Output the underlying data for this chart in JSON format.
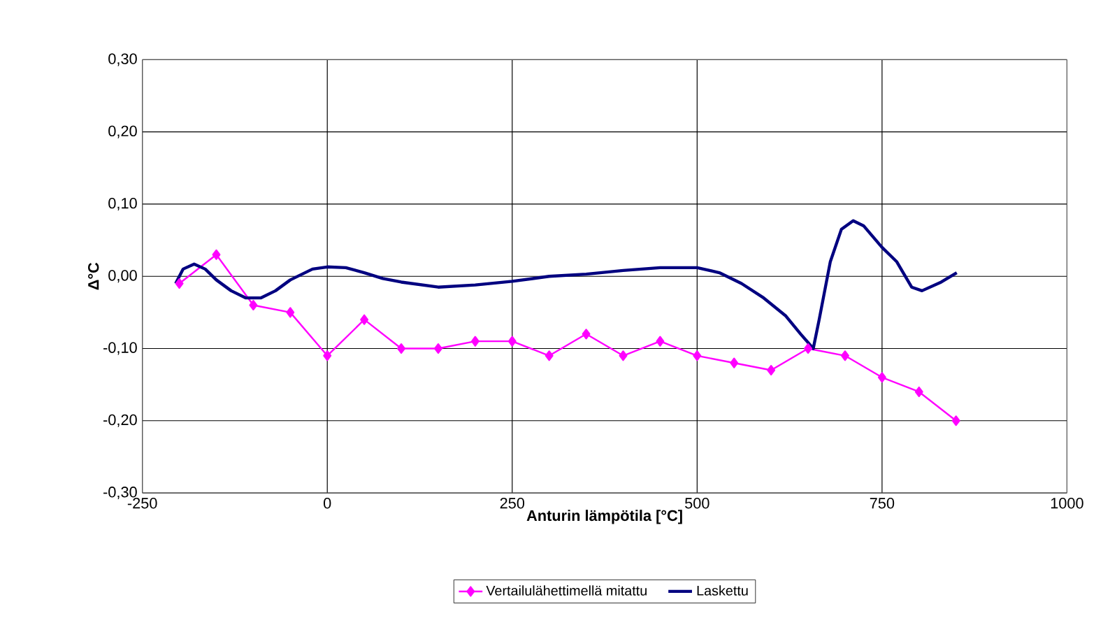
{
  "chart_data": {
    "type": "line",
    "xlabel": "Anturin lämpötila [°C]",
    "ylabel": "Δ°C",
    "xlim": [
      -250,
      1000
    ],
    "xticks": [
      -250,
      0,
      250,
      500,
      750,
      1000
    ],
    "ylim": [
      -0.3,
      0.3
    ],
    "yticks": [
      {
        "value": -0.3,
        "label": "-0,30"
      },
      {
        "value": -0.2,
        "label": "-0,20"
      },
      {
        "value": -0.1,
        "label": "-0,10"
      },
      {
        "value": 0,
        "label": "0,00"
      },
      {
        "value": 0.1,
        "label": "0,10"
      },
      {
        "value": 0.2,
        "label": "0,20"
      },
      {
        "value": 0.3,
        "label": "0,30"
      }
    ],
    "grid": true,
    "legend": "bottom",
    "series": [
      {
        "name": "Vertailulähettimellä mitattu",
        "color": "#ff00ff",
        "marker": "diamond",
        "x": [
          -200,
          -150,
          -100,
          -50,
          0,
          50,
          100,
          150,
          200,
          250,
          300,
          350,
          400,
          450,
          500,
          550,
          600,
          650,
          700,
          750,
          800,
          850
        ],
        "values": [
          -0.01,
          0.03,
          -0.04,
          -0.05,
          -0.11,
          -0.06,
          -0.1,
          -0.1,
          -0.09,
          -0.09,
          -0.11,
          -0.08,
          -0.11,
          -0.09,
          -0.11,
          -0.12,
          -0.13,
          -0.1,
          -0.11,
          -0.14,
          -0.16,
          -0.2
        ]
      },
      {
        "name": "Laskettu",
        "color": "#000080",
        "marker": "none",
        "x": [
          -205,
          -195,
          -180,
          -165,
          -150,
          -130,
          -110,
          -90,
          -70,
          -50,
          -20,
          0,
          25,
          50,
          75,
          100,
          150,
          200,
          250,
          300,
          350,
          400,
          450,
          500,
          530,
          560,
          590,
          620,
          640,
          657,
          665,
          680,
          695,
          711,
          725,
          750,
          770,
          790,
          804,
          830,
          851
        ],
        "values": [
          -0.01,
          0.01,
          0.017,
          0.01,
          -0.005,
          -0.02,
          -0.03,
          -0.03,
          -0.02,
          -0.005,
          0.01,
          0.013,
          0.012,
          0.005,
          -0.003,
          -0.008,
          -0.015,
          -0.012,
          -0.007,
          0.0,
          0.003,
          0.008,
          0.012,
          0.012,
          0.005,
          -0.01,
          -0.03,
          -0.055,
          -0.08,
          -0.1,
          -0.06,
          0.02,
          0.065,
          0.077,
          0.07,
          0.04,
          0.02,
          -0.015,
          -0.02,
          -0.008,
          0.005
        ]
      }
    ]
  }
}
